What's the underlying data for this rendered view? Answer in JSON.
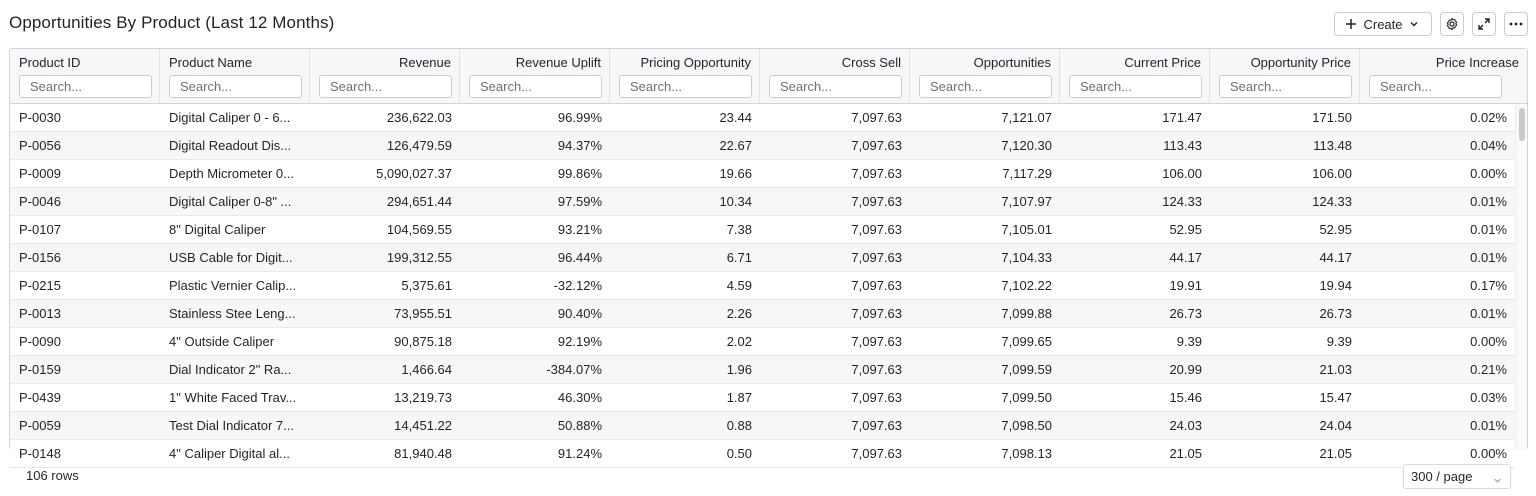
{
  "title": "Opportunities By Product (Last 12 Months)",
  "toolbar": {
    "create_label": "Create",
    "icons": [
      "plus-icon",
      "chevron-down-icon",
      "gear-icon",
      "expand-icon",
      "more-icon"
    ]
  },
  "columns": [
    {
      "label": "Product ID",
      "placeholder": "Search...",
      "align": "left"
    },
    {
      "label": "Product Name",
      "placeholder": "Search...",
      "align": "left"
    },
    {
      "label": "Revenue",
      "placeholder": "Search...",
      "align": "right"
    },
    {
      "label": "Revenue Uplift",
      "placeholder": "Search...",
      "align": "right"
    },
    {
      "label": "Pricing Opportunity",
      "placeholder": "Search...",
      "align": "right"
    },
    {
      "label": "Cross Sell",
      "placeholder": "Search...",
      "align": "right"
    },
    {
      "label": "Opportunities",
      "placeholder": "Search...",
      "align": "right"
    },
    {
      "label": "Current Price",
      "placeholder": "Search...",
      "align": "right"
    },
    {
      "label": "Opportunity Price",
      "placeholder": "Search...",
      "align": "right"
    },
    {
      "label": "Price Increase",
      "placeholder": "Search...",
      "align": "right"
    }
  ],
  "rows": [
    [
      "P-0030",
      "Digital Caliper 0 - 6...",
      "236,622.03",
      "96.99%",
      "23.44",
      "7,097.63",
      "7,121.07",
      "171.47",
      "171.50",
      "0.02%"
    ],
    [
      "P-0056",
      "Digital Readout Dis...",
      "126,479.59",
      "94.37%",
      "22.67",
      "7,097.63",
      "7,120.30",
      "113.43",
      "113.48",
      "0.04%"
    ],
    [
      "P-0009",
      "Depth Micrometer 0...",
      "5,090,027.37",
      "99.86%",
      "19.66",
      "7,097.63",
      "7,117.29",
      "106.00",
      "106.00",
      "0.00%"
    ],
    [
      "P-0046",
      "Digital Caliper 0-8\" ...",
      "294,651.44",
      "97.59%",
      "10.34",
      "7,097.63",
      "7,107.97",
      "124.33",
      "124.33",
      "0.01%"
    ],
    [
      "P-0107",
      "8\" Digital Caliper",
      "104,569.55",
      "93.21%",
      "7.38",
      "7,097.63",
      "7,105.01",
      "52.95",
      "52.95",
      "0.01%"
    ],
    [
      "P-0156",
      "USB Cable for Digit...",
      "199,312.55",
      "96.44%",
      "6.71",
      "7,097.63",
      "7,104.33",
      "44.17",
      "44.17",
      "0.01%"
    ],
    [
      "P-0215",
      "Plastic Vernier Calip...",
      "5,375.61",
      "-32.12%",
      "4.59",
      "7,097.63",
      "7,102.22",
      "19.91",
      "19.94",
      "0.17%"
    ],
    [
      "P-0013",
      "Stainless Stee Leng...",
      "73,955.51",
      "90.40%",
      "2.26",
      "7,097.63",
      "7,099.88",
      "26.73",
      "26.73",
      "0.01%"
    ],
    [
      "P-0090",
      "4\" Outside Caliper",
      "90,875.18",
      "92.19%",
      "2.02",
      "7,097.63",
      "7,099.65",
      "9.39",
      "9.39",
      "0.00%"
    ],
    [
      "P-0159",
      "Dial Indicator 2\" Ra...",
      "1,466.64",
      "-384.07%",
      "1.96",
      "7,097.63",
      "7,099.59",
      "20.99",
      "21.03",
      "0.21%"
    ],
    [
      "P-0439",
      "1\" White Faced Trav...",
      "13,219.73",
      "46.30%",
      "1.87",
      "7,097.63",
      "7,099.50",
      "15.46",
      "15.47",
      "0.03%"
    ],
    [
      "P-0059",
      "Test Dial Indicator 7...",
      "14,451.22",
      "50.88%",
      "0.88",
      "7,097.63",
      "7,098.50",
      "24.03",
      "24.04",
      "0.01%"
    ],
    [
      "P-0148",
      "4\" Caliper Digital al...",
      "81,940.48",
      "91.24%",
      "0.50",
      "7,097.63",
      "7,098.13",
      "21.05",
      "21.05",
      "0.00%"
    ]
  ],
  "footer": {
    "row_count": "106 rows",
    "page_size": "300 / page"
  }
}
